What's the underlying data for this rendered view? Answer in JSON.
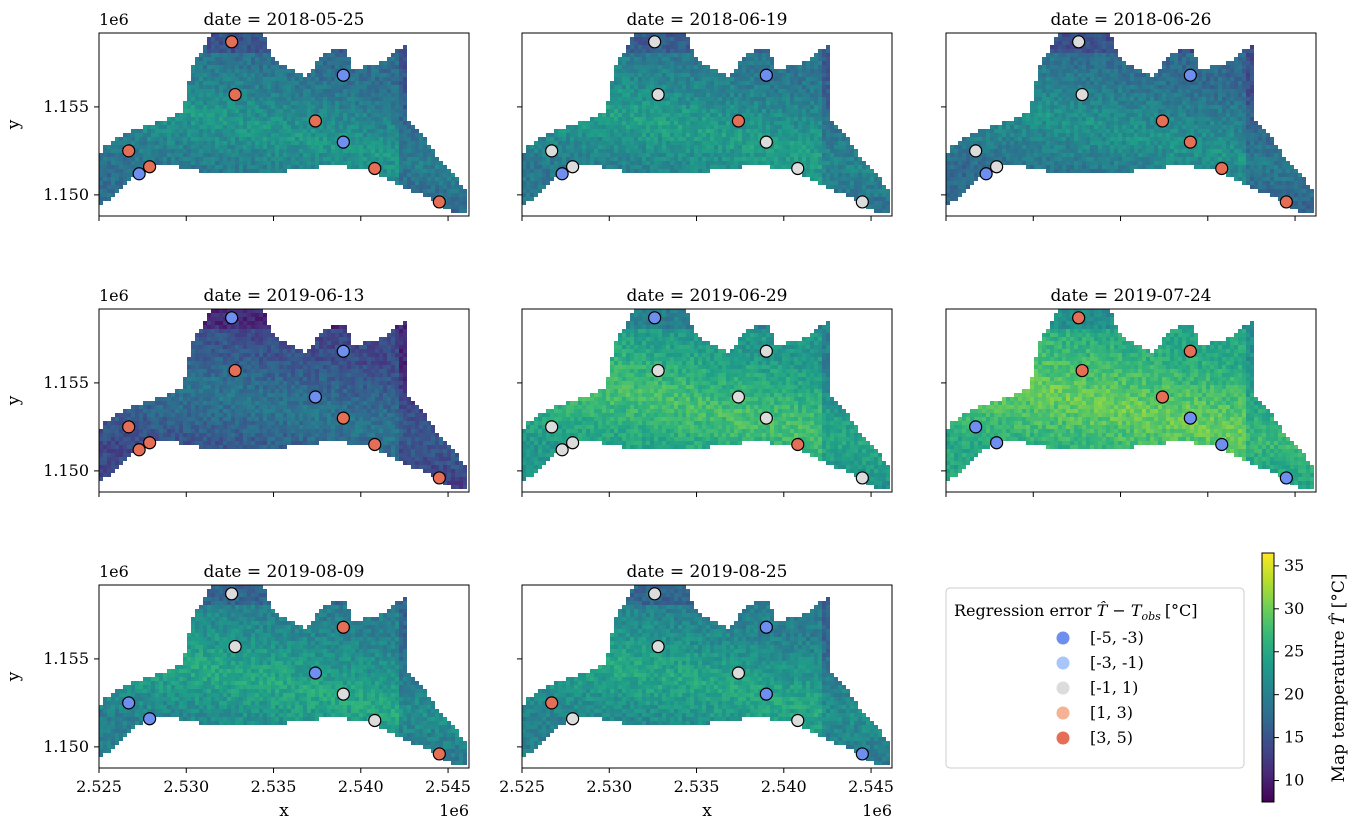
{
  "chart_data": {
    "type": "scatter",
    "panels": [
      {
        "title": "date = 2018-05-25",
        "errors": [
          "[3, 5)",
          "[-5, -3)",
          "[3, 5)",
          "[3, 5)",
          "[3, 5)",
          "[3, 5)",
          "[-5, -3)",
          "[-5, -3)",
          "[3, 5)",
          "[3, 5)"
        ]
      },
      {
        "title": "date = 2018-06-19",
        "errors": [
          "[-1, 1)",
          "[-5, -3)",
          "[-1, 1)",
          "[-1, 1)",
          "[-1, 1)",
          "[3, 5)",
          "[-1, 1)",
          "[-5, -3)",
          "[-1, 1)",
          "[-1, 1)"
        ]
      },
      {
        "title": "date = 2018-06-26",
        "errors": [
          "[-1, 1)",
          "[-5, -3)",
          "[-1, 1)",
          "[-1, 1)",
          "[-1, 1)",
          "[3, 5)",
          "[3, 5)",
          "[-5, -3)",
          "[3, 5)",
          "[3, 5)"
        ]
      },
      {
        "title": "date = 2019-06-13",
        "errors": [
          "[3, 5)",
          "[3, 5)",
          "[3, 5)",
          "[-5, -3)",
          "[3, 5)",
          "[-5, -3)",
          "[3, 5)",
          "[-5, -3)",
          "[3, 5)",
          "[3, 5)"
        ]
      },
      {
        "title": "date = 2019-06-29",
        "errors": [
          "[-1, 1)",
          "[-1, 1)",
          "[-1, 1)",
          "[-5, -3)",
          "[-1, 1)",
          "[-1, 1)",
          "[-1, 1)",
          "[-1, 1)",
          "[3, 5)",
          "[-1, 1)"
        ]
      },
      {
        "title": "date = 2019-07-24",
        "errors": [
          "[-5, -3)",
          null,
          "[-5, -3)",
          "[3, 5)",
          "[3, 5)",
          "[3, 5)",
          "[-5, -3)",
          "[3, 5)",
          "[-5, -3)",
          "[-5, -3)"
        ]
      },
      {
        "title": "date = 2019-08-09",
        "errors": [
          "[-5, -3)",
          null,
          "[-5, -3)",
          "[-1, 1)",
          "[-1, 1)",
          "[-5, -3)",
          "[-1, 1)",
          "[3, 5)",
          "[-1, 1)",
          "[3, 5)"
        ]
      },
      {
        "title": "date = 2019-08-25",
        "errors": [
          "[3, 5)",
          null,
          "[-1, 1)",
          "[-1, 1)",
          "[-1, 1)",
          "[-1, 1)",
          "[-5, -3)",
          "[-5, -3)",
          "[-1, 1)",
          "[-5, -3)"
        ]
      }
    ],
    "stations": [
      {
        "x": 2526700,
        "y": 1152500
      },
      {
        "x": 2527300,
        "y": 1151200
      },
      {
        "x": 2527900,
        "y": 1151600
      },
      {
        "x": 2532600,
        "y": 1158700
      },
      {
        "x": 2532800,
        "y": 1155700
      },
      {
        "x": 2537400,
        "y": 1154200
      },
      {
        "x": 2539000,
        "y": 1153000
      },
      {
        "x": 2539000,
        "y": 1156800
      },
      {
        "x": 2540800,
        "y": 1151500
      },
      {
        "x": 2544500,
        "y": 1149600
      }
    ],
    "panel_mean_temperature": [
      21,
      22,
      20.5,
      17,
      26,
      28,
      23,
      23
    ],
    "x_axis": {
      "label": "x",
      "offset_text": "1e6",
      "lim": [
        2525000,
        2546200
      ],
      "ticks": [
        "2.525",
        "2.530",
        "2.535",
        "2.540",
        "2.545"
      ],
      "tick_values": [
        2525000,
        2530000,
        2535000,
        2540000,
        2545000
      ]
    },
    "y_axis": {
      "label": "y",
      "offset_text": "1e6",
      "lim": [
        1148800,
        1159200
      ],
      "ticks": [
        "1.150",
        "1.155"
      ],
      "tick_values": [
        1150000,
        1155000
      ]
    },
    "legend": {
      "title": "Regression error",
      "title_math": "$\\hat{T} - T_{obs}$",
      "title_unit": "[°C]",
      "placement": "lower-right",
      "entries": [
        {
          "label": "[-5, -3)",
          "color": "#6f8ff0"
        },
        {
          "label": "[-3, -1)",
          "color": "#a9c6fb"
        },
        {
          "label": "[-1, 1)",
          "color": "#dddcdc"
        },
        {
          "label": "[1, 3)",
          "color": "#f5b294"
        },
        {
          "label": "[3, 5)",
          "color": "#e56f56"
        }
      ]
    },
    "colorbar": {
      "label": "Map temperature",
      "label_math": "$\\hat{T}$",
      "label_unit": "[°C]",
      "range": [
        7.5,
        36.5
      ],
      "ticks": [
        "10",
        "15",
        "20",
        "25",
        "30",
        "35"
      ],
      "tick_values": [
        10,
        15,
        20,
        25,
        30,
        35
      ],
      "colormap": "viridis"
    }
  }
}
